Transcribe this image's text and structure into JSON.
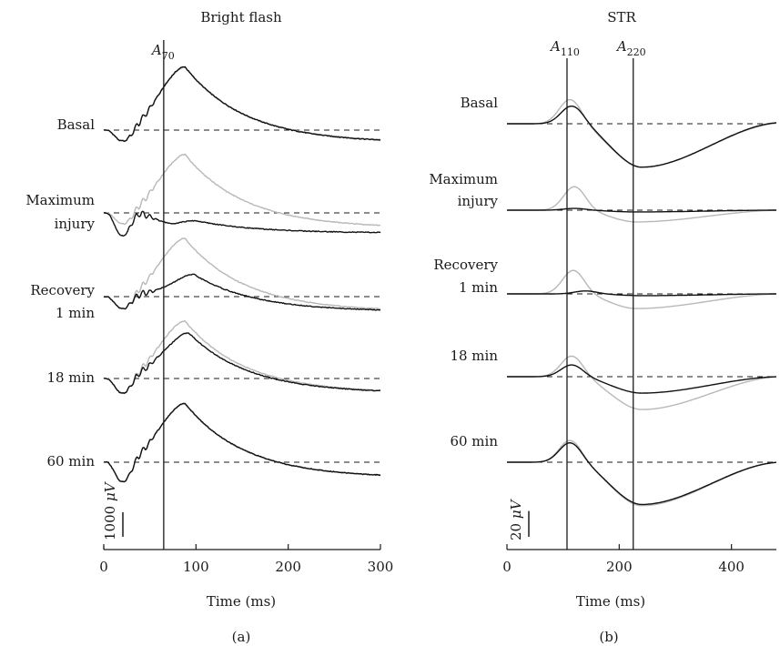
{
  "chart_data": [
    {
      "type": "line",
      "title": "Bright flash",
      "panel_label": "(a)",
      "xlabel": "Time (ms)",
      "xlim": [
        0,
        300
      ],
      "xticks": [
        "0",
        "100",
        "200",
        "300"
      ],
      "scale_bar": {
        "label_value": "1000",
        "label_unit": "μV",
        "value": 1000
      },
      "marker": {
        "label": "A",
        "subscript": "70",
        "x": 65
      },
      "traces": [
        {
          "row": "Basal",
          "gray": {
            "dip": -450,
            "peak": 2560,
            "peak_t": 88,
            "end": -500
          },
          "black": {
            "dip": -450,
            "peak": 2580,
            "peak_t": 88,
            "end": -520
          }
        },
        {
          "row": "Maximum injury",
          "gray": {
            "dip": -450,
            "peak": 2380,
            "peak_t": 88,
            "end": -620
          },
          "black": {
            "dip": -950,
            "peak": -320,
            "peak_t": 100,
            "end": -820
          }
        },
        {
          "row": "Recovery 1 min",
          "gray": {
            "dip": -500,
            "peak": 2370,
            "peak_t": 88,
            "end": -610
          },
          "black": {
            "dip": -500,
            "peak": 900,
            "peak_t": 98,
            "end": -610
          }
        },
        {
          "row": "18 min",
          "gray": {
            "dip": -600,
            "peak": 2340,
            "peak_t": 88,
            "end": -600
          },
          "black": {
            "dip": -600,
            "peak": 1860,
            "peak_t": 92,
            "end": -600
          }
        },
        {
          "row": "60 min",
          "gray": {
            "dip": -800,
            "peak": 2380,
            "peak_t": 88,
            "end": -640
          },
          "black": {
            "dip": -800,
            "peak": 2400,
            "peak_t": 88,
            "end": -640
          }
        }
      ]
    },
    {
      "type": "line",
      "title": "STR",
      "panel_label": "(b)",
      "xlabel": "Time (ms)",
      "xlim": [
        0,
        480
      ],
      "xticks": [
        "0",
        "200",
        "400"
      ],
      "scale_bar": {
        "label_value": "20",
        "label_unit": "μV",
        "value": 20
      },
      "markers": [
        {
          "label": "A",
          "subscript": "110",
          "x": 107
        },
        {
          "label": "A",
          "subscript": "220",
          "x": 225
        }
      ],
      "traces": [
        {
          "row": "Basal",
          "gray": {
            "p1": 41,
            "p1_t": 112,
            "n": -74,
            "n_t": 240,
            "end": 1
          },
          "black": {
            "p1": 30,
            "p1_t": 115,
            "n": -74,
            "n_t": 240,
            "end": 2
          }
        },
        {
          "row": "Maximum injury",
          "gray": {
            "p1": 40,
            "p1_t": 120,
            "n": -20,
            "n_t": 230,
            "end": 0
          },
          "black": {
            "p1": 3,
            "p1_t": 120,
            "n": -3,
            "n_t": 230,
            "end": 0
          }
        },
        {
          "row": "Recovery 1 min",
          "gray": {
            "p1": 40,
            "p1_t": 118,
            "n": -25,
            "n_t": 230,
            "end": 0
          },
          "black": {
            "p1": 5,
            "p1_t": 140,
            "n": -3,
            "n_t": 240,
            "end": 0
          }
        },
        {
          "row": "18 min",
          "gray": {
            "p1": 35,
            "p1_t": 115,
            "n": -56,
            "n_t": 240,
            "end": 0
          },
          "black": {
            "p1": 20,
            "p1_t": 115,
            "n": -28,
            "n_t": 240,
            "end": 0
          }
        },
        {
          "row": "60 min",
          "gray": {
            "p1": 37,
            "p1_t": 112,
            "n": -74,
            "n_t": 240,
            "end": 0
          },
          "black": {
            "p1": 33,
            "p1_t": 112,
            "n": -72,
            "n_t": 240,
            "end": 0
          }
        }
      ]
    }
  ],
  "row_labels": [
    [
      "Basal"
    ],
    [
      "Maximum",
      "injury"
    ],
    [
      "Recovery",
      "1 min"
    ],
    [
      "18 min"
    ],
    [
      "60 min"
    ]
  ],
  "colors": {
    "control": "#b8b8b8",
    "treated": "#111111",
    "axis": "#1a1a1a"
  }
}
